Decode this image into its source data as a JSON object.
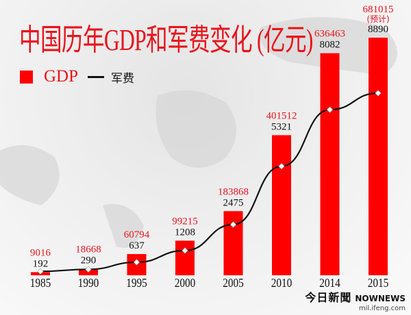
{
  "chart_data": {
    "type": "bar+line",
    "title": "中国历年GDP和军费变化 (亿元)",
    "categories": [
      "1985",
      "1990",
      "1995",
      "2000",
      "2005",
      "2010",
      "2014",
      "2015"
    ],
    "series": [
      {
        "name": "GDP",
        "type": "bar",
        "color": "#ff0000",
        "values": [
          9016,
          18668,
          60794,
          99215,
          183868,
          401512,
          636463,
          681015
        ]
      },
      {
        "name": "军费",
        "type": "line",
        "color": "#111111",
        "values": [
          192,
          290,
          637,
          1208,
          2475,
          5321,
          8082,
          8890
        ]
      }
    ],
    "annotations": [
      {
        "category": "2015",
        "text": "(预计)"
      }
    ],
    "legend": "top-left",
    "grid": false
  },
  "legend": {
    "gdp": "GDP",
    "military": "军费"
  },
  "watermark": {
    "cn": "今日新聞",
    "en": "NOWNEWS",
    "url": "mil.ifeng.com"
  }
}
